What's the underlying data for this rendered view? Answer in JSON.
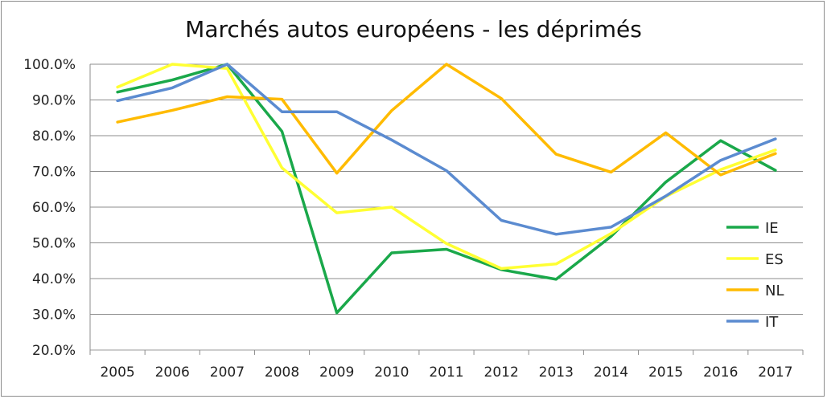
{
  "chart_data": {
    "type": "line",
    "title": "Marchés autos européens - les déprimés",
    "xlabel": "",
    "ylabel": "",
    "x": [
      "2005",
      "2006",
      "2007",
      "2008",
      "2009",
      "2010",
      "2011",
      "2012",
      "2013",
      "2014",
      "2015",
      "2016",
      "2017"
    ],
    "ylim": [
      20,
      100
    ],
    "yticks": [
      "20.0%",
      "30.0%",
      "40.0%",
      "50.0%",
      "60.0%",
      "70.0%",
      "80.0%",
      "90.0%",
      "100.0%"
    ],
    "grid": true,
    "legend_position": "right",
    "series": [
      {
        "name": "IE",
        "color": "#1aa84a",
        "values": [
          92.2,
          95.6,
          100.0,
          81.2,
          30.4,
          47.2,
          48.2,
          42.5,
          39.8,
          51.8,
          67.0,
          78.6,
          70.3
        ]
      },
      {
        "name": "ES",
        "color": "#ffff33",
        "values": [
          93.6,
          100.0,
          98.8,
          71.0,
          58.4,
          60.0,
          49.8,
          42.8,
          44.1,
          52.6,
          63.0,
          70.5,
          76.0
        ]
      },
      {
        "name": "NL",
        "color": "#ffbb00",
        "values": [
          83.8,
          87.1,
          90.9,
          90.2,
          69.5,
          87.0,
          100.0,
          90.4,
          74.8,
          69.8,
          80.8,
          69.0,
          75.0
        ]
      },
      {
        "name": "IT",
        "color": "#5b8bd0",
        "values": [
          89.8,
          93.4,
          100.0,
          86.7,
          86.7,
          78.8,
          70.2,
          56.3,
          52.4,
          54.4,
          63.1,
          73.1,
          79.1
        ]
      }
    ]
  }
}
